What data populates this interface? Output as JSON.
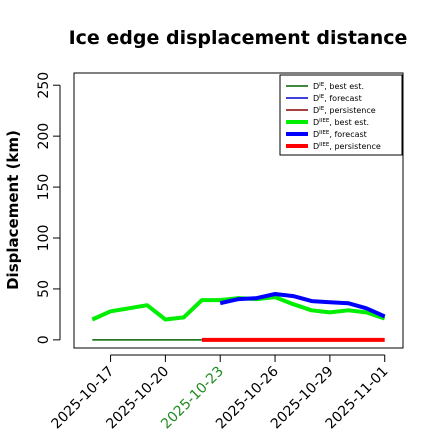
{
  "chart_data": {
    "type": "line",
    "title": "Ice edge displacement distance",
    "xlabel": "",
    "ylabel": "Displacement (km)",
    "ylim": [
      -8,
      262
    ],
    "yticks": [
      0,
      50,
      100,
      150,
      200,
      250
    ],
    "xlim": [
      "2025-10-15",
      "2025-11-02"
    ],
    "xticks": [
      {
        "date": "2025-10-17",
        "label": "2025-10-17",
        "color": "#000000"
      },
      {
        "date": "2025-10-20",
        "label": "2025-10-20",
        "color": "#000000"
      },
      {
        "date": "2025-10-23",
        "label": "2025-10-23",
        "color": "#228b22"
      },
      {
        "date": "2025-10-26",
        "label": "2025-10-26",
        "color": "#000000"
      },
      {
        "date": "2025-10-29",
        "label": "2025-10-29",
        "color": "#000000"
      },
      {
        "date": "2025-11-01",
        "label": "2025-11-01",
        "color": "#000000"
      }
    ],
    "grid": false,
    "legend_position": "top-right",
    "series": [
      {
        "name": "D^IE, best est.",
        "base": "D",
        "sup": "IE",
        "suffix": ", best est.",
        "color": "#006400",
        "width": 1.5,
        "points": [
          [
            "2025-10-16",
            0
          ],
          [
            "2025-10-22",
            0
          ]
        ]
      },
      {
        "name": "D^IE, forecast",
        "base": "D",
        "sup": "IE",
        "suffix": ", forecast",
        "color": "#0000cd",
        "width": 1.5,
        "points": []
      },
      {
        "name": "D^IE, persistence",
        "base": "D",
        "sup": "IE",
        "suffix": ", persistence",
        "color": "#8b0000",
        "width": 1.5,
        "points": []
      },
      {
        "name": "D^IIEE, best est.",
        "base": "D",
        "sup": "IIEE",
        "suffix": ", best est.",
        "color": "#00ee00",
        "width": 4,
        "points": [
          [
            "2025-10-16",
            20
          ],
          [
            "2025-10-17",
            28
          ],
          [
            "2025-10-18",
            31
          ],
          [
            "2025-10-19",
            34
          ],
          [
            "2025-10-20",
            20
          ],
          [
            "2025-10-21",
            22
          ],
          [
            "2025-10-22",
            39
          ],
          [
            "2025-10-23",
            39
          ],
          [
            "2025-10-24",
            41
          ],
          [
            "2025-10-25",
            40
          ],
          [
            "2025-10-26",
            42
          ],
          [
            "2025-10-27",
            35
          ],
          [
            "2025-10-28",
            29
          ],
          [
            "2025-10-29",
            27
          ],
          [
            "2025-10-30",
            29
          ],
          [
            "2025-10-31",
            27
          ],
          [
            "2025-11-01",
            21
          ]
        ]
      },
      {
        "name": "D^IIEE, forecast",
        "base": "D",
        "sup": "IIEE",
        "suffix": ", forecast",
        "color": "#0000ff",
        "width": 4,
        "points": [
          [
            "2025-10-23",
            36
          ],
          [
            "2025-10-24",
            40
          ],
          [
            "2025-10-25",
            41
          ],
          [
            "2025-10-26",
            45
          ],
          [
            "2025-10-27",
            43
          ],
          [
            "2025-10-28",
            38
          ],
          [
            "2025-10-29",
            37
          ],
          [
            "2025-10-30",
            36
          ],
          [
            "2025-10-31",
            31
          ],
          [
            "2025-11-01",
            23
          ]
        ]
      },
      {
        "name": "D^IIEE, persistence",
        "base": "D",
        "sup": "IIEE",
        "suffix": ", persistence",
        "color": "#ff0000",
        "width": 4,
        "points": [
          [
            "2025-10-22",
            0
          ],
          [
            "2025-11-01",
            0
          ]
        ]
      }
    ]
  }
}
